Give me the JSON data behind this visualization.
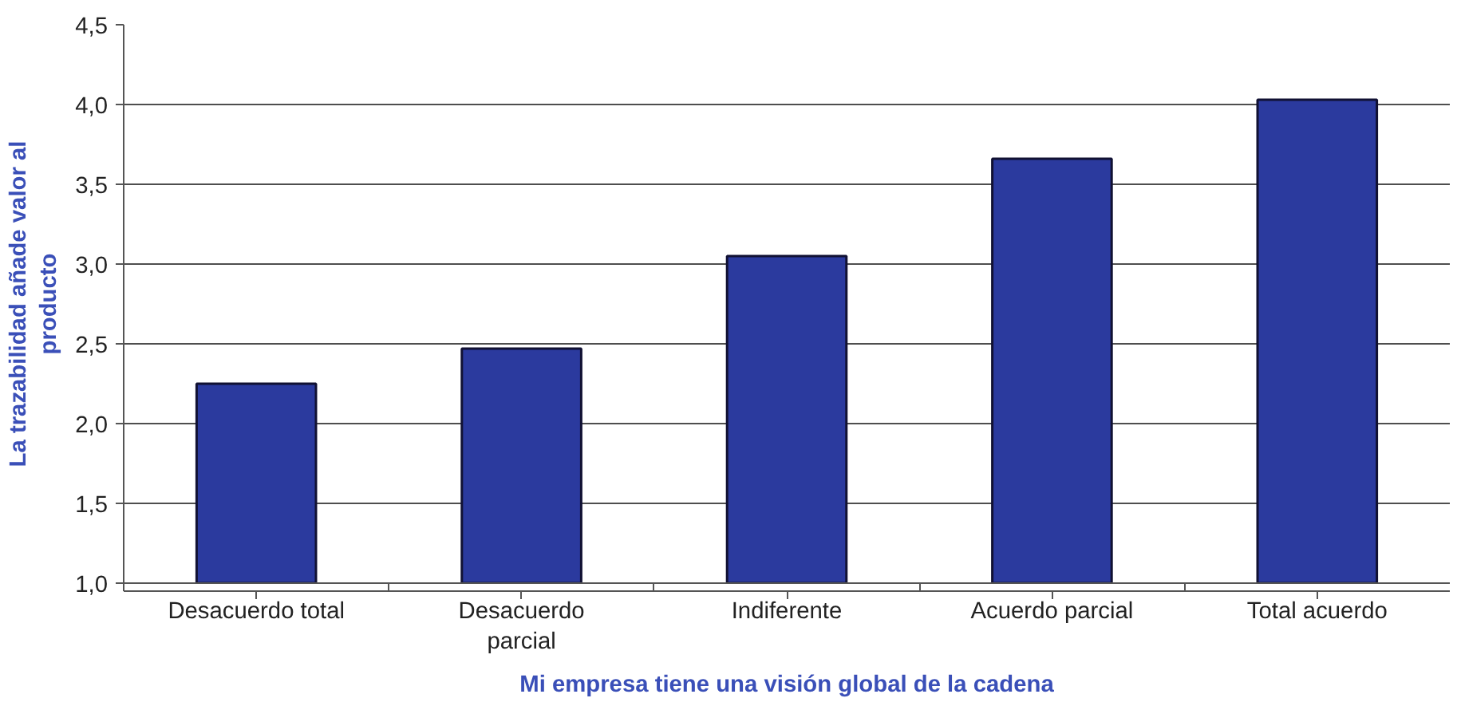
{
  "chart_data": {
    "type": "bar",
    "xlabel": "Mi empresa tiene una visión global de la cadena",
    "ylabel": "La trazabilidad añade valor al producto",
    "categories": [
      "Desacuerdo total",
      "Desacuerdo parcial",
      "Indiferente",
      "Acuerdo parcial",
      "Total acuerdo"
    ],
    "values": [
      2.25,
      2.47,
      3.05,
      3.66,
      4.03
    ],
    "color": "#2b3a9e",
    "ylim": [
      1.0,
      4.5
    ],
    "yticks": [
      {
        "value": 1.0,
        "label": "1,0"
      },
      {
        "value": 1.5,
        "label": "1,5"
      },
      {
        "value": 2.0,
        "label": "2,0"
      },
      {
        "value": 2.5,
        "label": "2,5"
      },
      {
        "value": 3.0,
        "label": "3,0"
      },
      {
        "value": 3.5,
        "label": "3,5"
      },
      {
        "value": 4.0,
        "label": "4,0"
      },
      {
        "value": 4.5,
        "label": "4,5"
      }
    ],
    "grid": "y"
  }
}
